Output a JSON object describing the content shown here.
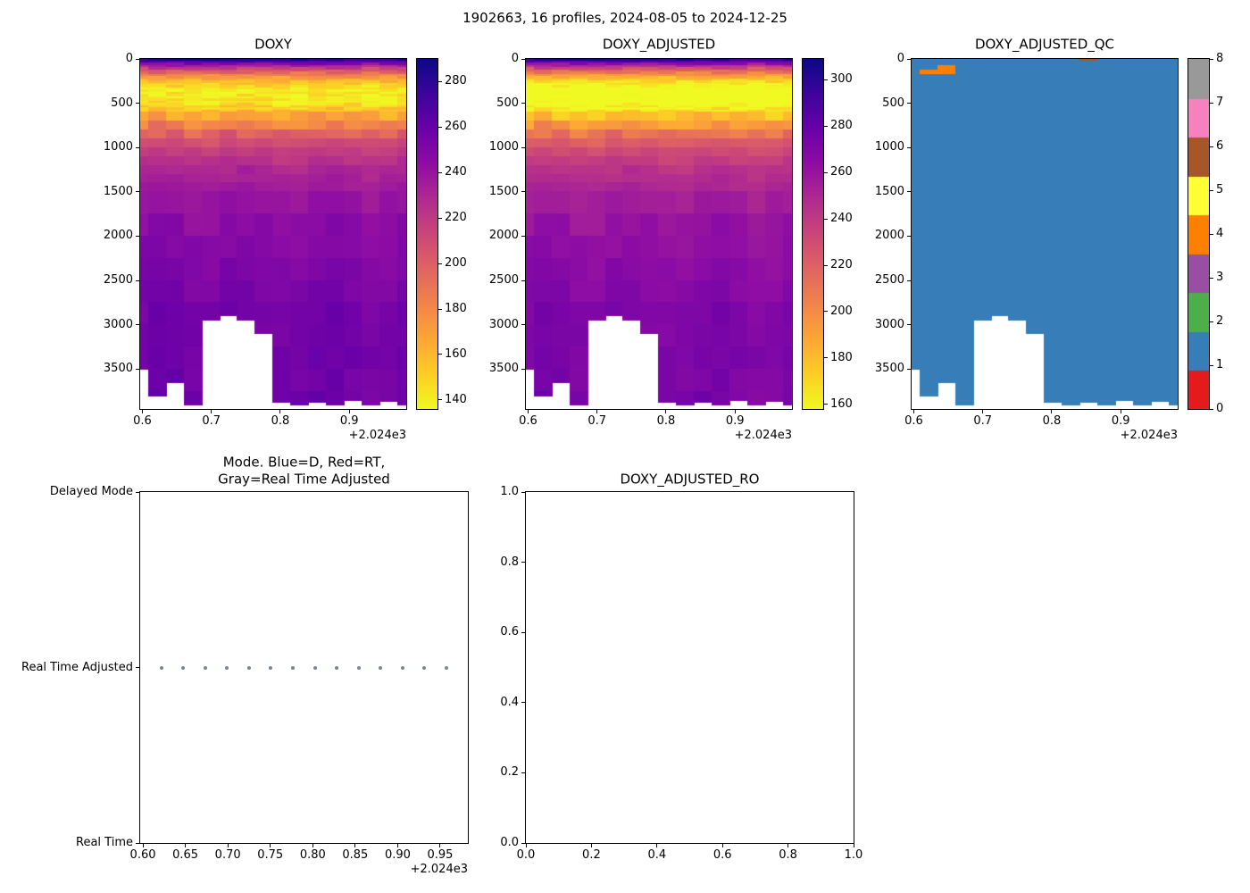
{
  "figure_title": "1902663, 16 profiles, 2024-08-05 to 2024-12-25",
  "chart_data": [
    {
      "id": "doxy",
      "type": "heatmap",
      "title": "DOXY",
      "x_offset": "+2.024e3",
      "xlim": [
        0.5968,
        0.9826
      ],
      "ylim": [
        0,
        3950
      ],
      "x_ticks": [
        0.6,
        0.7,
        0.8,
        0.9
      ],
      "x_tick_labels": [
        "0.6",
        "0.7",
        "0.8",
        "0.9"
      ],
      "y_ticks": [
        0,
        500,
        1000,
        1500,
        2000,
        2500,
        3000,
        3500
      ],
      "y_tick_labels": [
        "0",
        "500",
        "1000",
        "1500",
        "2000",
        "2500",
        "3000",
        "3500"
      ],
      "colormap": "plasma_r",
      "clim": [
        136,
        290
      ],
      "colorbar_ticks": [
        140,
        160,
        180,
        200,
        220,
        240,
        260,
        280
      ],
      "profile_times": [
        0.596,
        0.6218,
        0.6476,
        0.6734,
        0.6992,
        0.725,
        0.7508,
        0.7766,
        0.8024,
        0.8282,
        0.854,
        0.8798,
        0.9056,
        0.9314,
        0.9572,
        0.983
      ],
      "profile_max_depth": [
        3500,
        3800,
        3650,
        3900,
        2950,
        2900,
        2950,
        3100,
        3870,
        3900,
        3870,
        3900,
        3850,
        3900,
        3860,
        3900
      ],
      "depth_levels": [
        0,
        30,
        60,
        90,
        120,
        150,
        200,
        250,
        300,
        350,
        400,
        450,
        500,
        550,
        600,
        700,
        800,
        900,
        1000,
        1200,
        1400,
        1700,
        2000,
        2400,
        2800,
        3200,
        3600,
        3950
      ],
      "mean_values": [
        292,
        272,
        250,
        230,
        212,
        198,
        178,
        162,
        150,
        143,
        140,
        141,
        145,
        152,
        160,
        176,
        192,
        205,
        215,
        228,
        235,
        242,
        247,
        251,
        254,
        256,
        257,
        258
      ]
    },
    {
      "id": "doxy_adjusted",
      "type": "heatmap",
      "title": "DOXY_ADJUSTED",
      "x_offset": "+2.024e3",
      "xlim": [
        0.5968,
        0.9826
      ],
      "ylim": [
        0,
        3950
      ],
      "x_ticks": [
        0.6,
        0.7,
        0.8,
        0.9
      ],
      "x_tick_labels": [
        "0.6",
        "0.7",
        "0.8",
        "0.9"
      ],
      "y_ticks": [
        0,
        500,
        1000,
        1500,
        2000,
        2500,
        3000,
        3500
      ],
      "y_tick_labels": [
        "0",
        "500",
        "1000",
        "1500",
        "2000",
        "2500",
        "3000",
        "3500"
      ],
      "colormap": "plasma_r",
      "clim": [
        158,
        309
      ],
      "colorbar_ticks": [
        160,
        180,
        200,
        220,
        240,
        260,
        280,
        300
      ],
      "profile_times": [
        0.596,
        0.6218,
        0.6476,
        0.6734,
        0.6992,
        0.725,
        0.7508,
        0.7766,
        0.8024,
        0.8282,
        0.854,
        0.8798,
        0.9056,
        0.9314,
        0.9572,
        0.983
      ],
      "profile_max_depth": [
        3500,
        3800,
        3650,
        3900,
        2950,
        2900,
        2950,
        3100,
        3870,
        3900,
        3870,
        3900,
        3850,
        3900,
        3860,
        3900
      ],
      "depth_levels": [
        0,
        30,
        60,
        90,
        120,
        150,
        200,
        250,
        300,
        350,
        400,
        450,
        500,
        550,
        600,
        700,
        800,
        900,
        1000,
        1200,
        1400,
        1700,
        2000,
        2400,
        2800,
        3200,
        3600,
        3950
      ],
      "mean_values": [
        310,
        288,
        265,
        244,
        225,
        210,
        189,
        172,
        159,
        152,
        148,
        149,
        154,
        161,
        170,
        187,
        204,
        217,
        228,
        242,
        249,
        257,
        262,
        266,
        269,
        271,
        272,
        273
      ]
    },
    {
      "id": "doxy_adjusted_qc",
      "type": "heatmap-categorical",
      "title": "DOXY_ADJUSTED_QC",
      "x_offset": "+2.024e3",
      "xlim": [
        0.5968,
        0.9826
      ],
      "ylim": [
        0,
        3950
      ],
      "x_ticks": [
        0.6,
        0.7,
        0.8,
        0.9
      ],
      "x_tick_labels": [
        "0.6",
        "0.7",
        "0.8",
        "0.9"
      ],
      "y_ticks": [
        0,
        500,
        1000,
        1500,
        2000,
        2500,
        3000,
        3500
      ],
      "y_tick_labels": [
        "0",
        "500",
        "1000",
        "1500",
        "2000",
        "2500",
        "3000",
        "3500"
      ],
      "qc_colors": [
        "#e41a1c",
        "#377eb8",
        "#4daf4a",
        "#984ea3",
        "#ff7f00",
        "#ffff33",
        "#a65628",
        "#f781bf",
        "#999999"
      ],
      "colorbar_ticks": [
        0,
        1,
        2,
        3,
        4,
        5,
        6,
        7,
        8
      ],
      "colorbar_tick_labels": [
        "0",
        "1",
        "2",
        "3",
        "4",
        "5",
        "6",
        "7",
        "8"
      ],
      "base_qc": 1,
      "overrides": [
        {
          "profile": 2,
          "depth_range": [
            80,
            115
          ],
          "qc": 4
        },
        {
          "profile": 1,
          "depth_range": [
            135,
            165
          ],
          "qc": 4
        },
        {
          "profile": 2,
          "depth_range": [
            135,
            165
          ],
          "qc": 4
        },
        {
          "profile": 10,
          "depth_range": [
            0,
            35
          ],
          "qc": 6
        }
      ],
      "profile_times": [
        0.596,
        0.6218,
        0.6476,
        0.6734,
        0.6992,
        0.725,
        0.7508,
        0.7766,
        0.8024,
        0.8282,
        0.854,
        0.8798,
        0.9056,
        0.9314,
        0.9572,
        0.983
      ],
      "profile_max_depth": [
        3500,
        3800,
        3650,
        3900,
        2950,
        2900,
        2950,
        3100,
        3870,
        3900,
        3870,
        3900,
        3850,
        3900,
        3860,
        3900
      ]
    },
    {
      "id": "mode",
      "type": "scatter",
      "title": "Mode. Blue=D, Red=RT,\nGray=Real Time Adjusted",
      "x_offset": "+2.024e3",
      "xlim": [
        0.5968,
        0.9826
      ],
      "ylim": [
        0,
        2
      ],
      "x_ticks": [
        0.6,
        0.65,
        0.7,
        0.75,
        0.8,
        0.85,
        0.9,
        0.95
      ],
      "x_tick_labels": [
        "0.60",
        "0.65",
        "0.70",
        "0.75",
        "0.80",
        "0.85",
        "0.90",
        "0.95"
      ],
      "y_categories": [
        {
          "label": "Real Time",
          "value": 0
        },
        {
          "label": "Real Time Adjusted",
          "value": 1
        },
        {
          "label": "Delayed Mode",
          "value": 2
        }
      ],
      "point_color": "#7b8794",
      "points": {
        "x": [
          0.596,
          0.6218,
          0.6476,
          0.6734,
          0.6992,
          0.725,
          0.7508,
          0.7766,
          0.8024,
          0.8282,
          0.854,
          0.8798,
          0.9056,
          0.9314,
          0.9572,
          0.983
        ],
        "y_value": 1,
        "mode": "Real Time Adjusted"
      }
    },
    {
      "id": "doxy_adjusted_ro",
      "type": "empty",
      "title": "DOXY_ADJUSTED_RO",
      "xlim": [
        0,
        1
      ],
      "ylim": [
        0,
        1
      ],
      "x_ticks": [
        0,
        0.2,
        0.4,
        0.6,
        0.8,
        1
      ],
      "x_tick_labels": [
        "0.0",
        "0.2",
        "0.4",
        "0.6",
        "0.8",
        "1.0"
      ],
      "y_ticks": [
        0,
        0.2,
        0.4,
        0.6,
        0.8,
        1
      ],
      "y_tick_labels": [
        "0.0",
        "0.2",
        "0.4",
        "0.6",
        "0.8",
        "1.0"
      ]
    }
  ]
}
